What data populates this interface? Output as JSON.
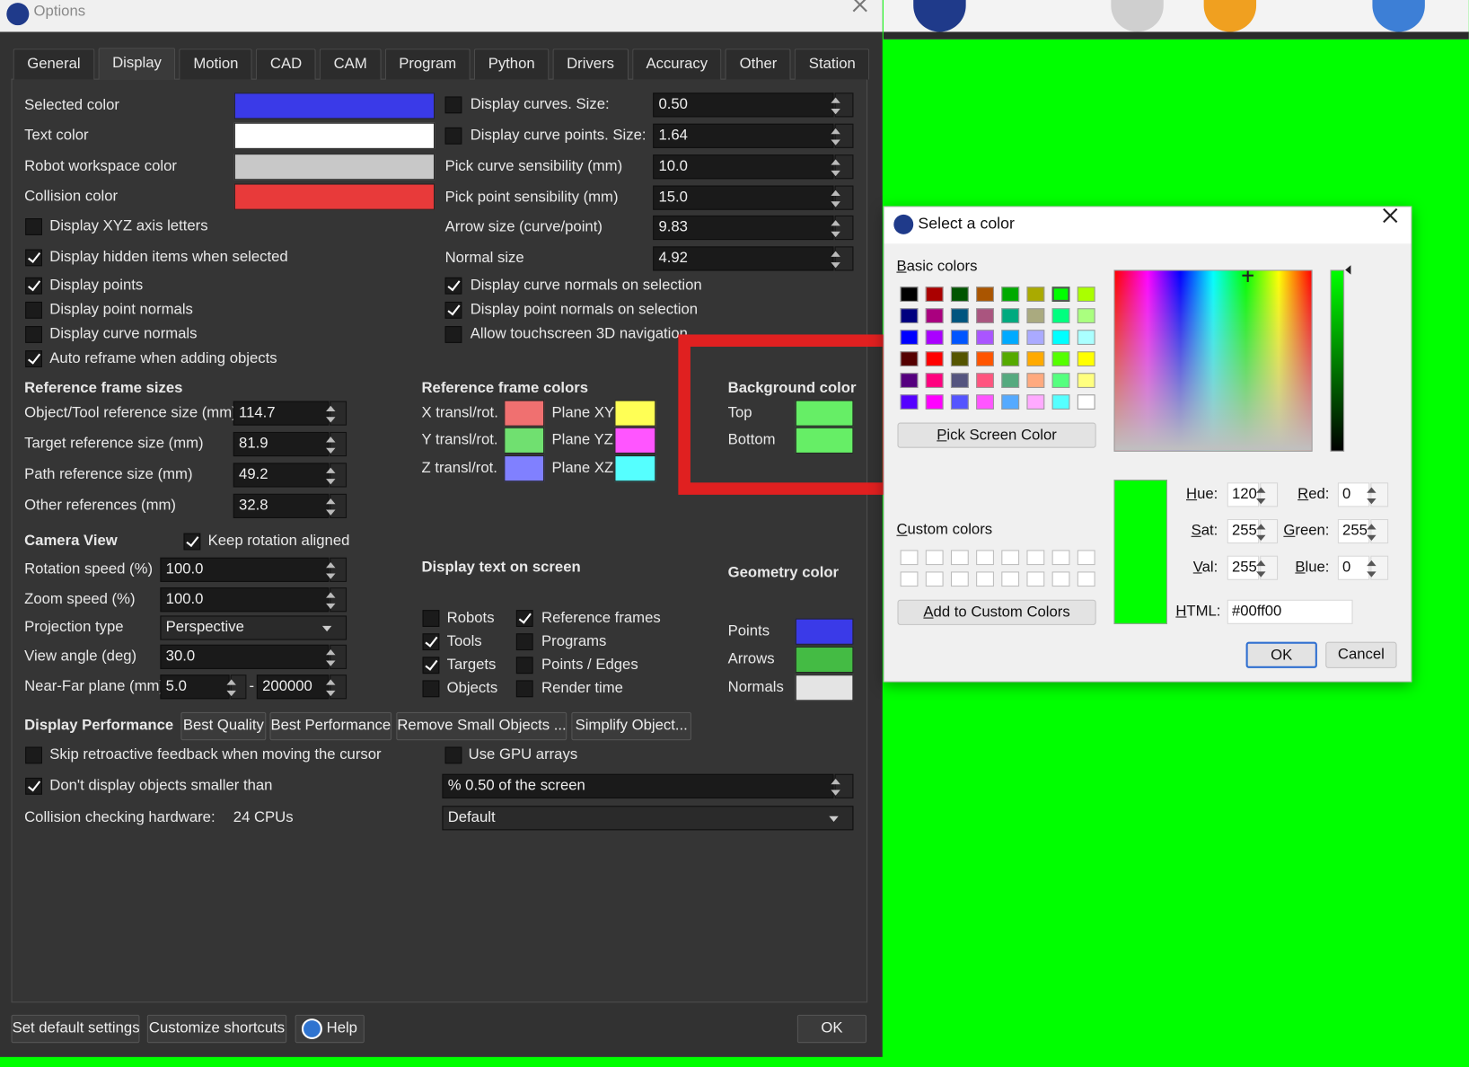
{
  "options": {
    "title": "Options",
    "tabs": [
      "General",
      "Display",
      "Motion",
      "CAD",
      "CAM",
      "Program",
      "Python",
      "Drivers",
      "Accuracy",
      "Other",
      "Station"
    ],
    "color_settings": [
      "Selected color",
      "Text color",
      "Robot workspace color",
      "Collision color"
    ],
    "view_checks": [
      {
        "label": "Display XYZ axis letters",
        "checked": false
      },
      {
        "label": "Display hidden items when selected",
        "checked": true
      },
      {
        "label": "Display points",
        "checked": true
      },
      {
        "label": "Display point normals",
        "checked": false
      },
      {
        "label": "Display curve normals",
        "checked": false
      },
      {
        "label": "Auto reframe when adding objects",
        "checked": true
      }
    ],
    "curve_fields": [
      {
        "label": "Display curves. Size:",
        "checked": false,
        "value": "0.50"
      },
      {
        "label": "Display curve points. Size:",
        "checked": false,
        "value": "1.64"
      },
      {
        "label": "Pick curve sensibility (mm)",
        "value": "10.0"
      },
      {
        "label": "Pick point sensibility (mm)",
        "value": "15.0"
      },
      {
        "label": "Arrow size (curve/point)",
        "value": "9.83"
      },
      {
        "label": "Normal size",
        "value": "4.92"
      }
    ],
    "selection_checks": [
      {
        "label": "Display curve normals on selection",
        "checked": true
      },
      {
        "label": "Display point normals on selection",
        "checked": true
      },
      {
        "label": "Allow touchscreen 3D navigation",
        "checked": false
      }
    ],
    "reference_frame_sizes": {
      "heading": "Reference frame sizes",
      "fields": [
        {
          "label": "Object/Tool reference size (mm)",
          "value": "114.7"
        },
        {
          "label": "Target reference size (mm)",
          "value": "81.9"
        },
        {
          "label": "Path reference size (mm)",
          "value": "49.2"
        },
        {
          "label": "Other references (mm)",
          "value": "32.8"
        }
      ]
    },
    "reference_frame_colors": {
      "heading": "Reference frame colors",
      "axes": [
        "X transl/rot.",
        "Y transl/rot.",
        "Z transl/rot."
      ],
      "planes": [
        "Plane XY",
        "Plane YZ",
        "Plane XZ"
      ]
    },
    "background_color": {
      "heading": "Background color",
      "top": "Top",
      "bottom": "Bottom"
    },
    "camera_view": {
      "heading": "Camera View",
      "keep_rotation": {
        "label": "Keep rotation aligned",
        "checked": true
      },
      "fields": [
        {
          "label": "Rotation speed (%)",
          "value": "100.0"
        },
        {
          "label": "Zoom speed (%)",
          "value": "100.0"
        },
        {
          "label": "Projection type",
          "value": "Perspective"
        },
        {
          "label": "View angle (deg)",
          "value": "30.0"
        }
      ],
      "near_far": {
        "label": "Near-Far plane (mm)",
        "near": "5.0",
        "separator": "-",
        "far": "200000"
      }
    },
    "display_text": {
      "heading": "Display text on screen",
      "items": [
        {
          "label": "Robots",
          "checked": false
        },
        {
          "label": "Tools",
          "checked": true
        },
        {
          "label": "Targets",
          "checked": true
        },
        {
          "label": "Objects",
          "checked": false
        },
        {
          "label": "Reference frames",
          "checked": true
        },
        {
          "label": "Programs",
          "checked": false
        },
        {
          "label": "Points / Edges",
          "checked": false
        },
        {
          "label": "Render time",
          "checked": false
        }
      ]
    },
    "geometry_color": {
      "heading": "Geometry color",
      "items": [
        "Points",
        "Arrows",
        "Normals"
      ]
    },
    "performance": {
      "heading": "Display Performance",
      "buttons": [
        "Best Quality",
        "Best Performance",
        "Remove Small Objects ...",
        "Simplify Object..."
      ],
      "skip_feedback": {
        "label": "Skip retroactive feedback when moving the cursor",
        "checked": false
      },
      "gpu_arrays": {
        "label": "Use GPU arrays",
        "checked": false
      },
      "hide_small": {
        "label": "Don't display objects smaller than",
        "checked": true,
        "value": "% 0.50 of the screen"
      },
      "collision_hardware": {
        "label": "Collision checking hardware:",
        "value": "24 CPUs",
        "mode": "Default"
      }
    },
    "footer": [
      "Set default settings",
      "Customize shortcuts",
      "Help",
      "OK"
    ]
  },
  "color_dialog": {
    "title": "Select a color",
    "basic_colors": "Basic colors",
    "pick_screen": "Pick Screen Color",
    "custom_colors": "Custom colors",
    "add_custom": "Add to Custom Colors",
    "fields": [
      {
        "label": "Hue:",
        "value": "120"
      },
      {
        "label": "Sat:",
        "value": "255"
      },
      {
        "label": "Val:",
        "value": "255"
      },
      {
        "label": "Red:",
        "value": "0"
      },
      {
        "label": "Green:",
        "value": "255"
      },
      {
        "label": "Blue:",
        "value": "0"
      }
    ],
    "html": {
      "label": "HTML:",
      "value": "#00ff00"
    },
    "buttons": [
      "OK",
      "Cancel"
    ]
  }
}
